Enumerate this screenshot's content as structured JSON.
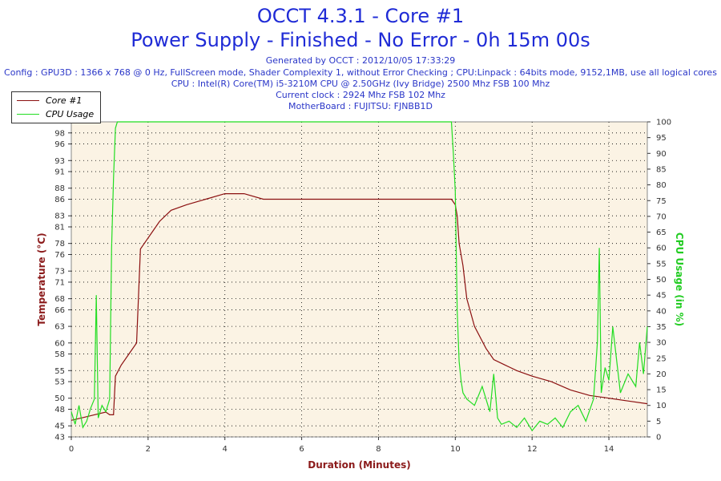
{
  "header": {
    "title": "OCCT 4.3.1 - Core #1",
    "subtitle": "Power Supply - Finished - No Error - 0h 15m 00s",
    "generated": "Generated by OCCT : 2012/10/05 17:33:29",
    "config": "Config : GPU3D : 1366 x 768 @ 0 Hz, FullScreen mode, Shader Complexity 1, without Error Checking ; CPU:Linpack : 64bits mode, 9152,1MB, use all logical cores",
    "cpu": "CPU : Intel(R) Core(TM) i5-3210M CPU @ 2.50GHz (Ivy Bridge) 2500 Mhz FSB 100 Mhz",
    "clock": "Current clock : 2924 Mhz FSB 102 Mhz",
    "motherboard": "MotherBoard : FUJITSU: FJNBB1D"
  },
  "colors": {
    "temperature": "#8b1010",
    "cpu_usage": "#22dd22",
    "plot_bg": "#fbf3e4",
    "axis_label": "#8b1a1a",
    "right_axis_label": "#22cc22"
  },
  "chart_data": {
    "type": "line",
    "xlabel": "Duration (Minutes)",
    "ylabel": "Temperature (°C)",
    "ylabel_right": "CPU Usage (in %)",
    "xlim": [
      0,
      15
    ],
    "ylim": [
      43,
      100
    ],
    "ylim_right": [
      0,
      100
    ],
    "x_ticks": [
      0,
      2,
      4,
      6,
      8,
      10,
      12,
      14
    ],
    "y_ticks": [
      43,
      45,
      48,
      50,
      53,
      55,
      58,
      60,
      63,
      66,
      68,
      71,
      73,
      76,
      78,
      81,
      83,
      86,
      88,
      91,
      93,
      96,
      98
    ],
    "y_ticks_right": [
      0,
      5,
      10,
      15,
      20,
      25,
      30,
      35,
      40,
      45,
      50,
      55,
      60,
      65,
      70,
      75,
      80,
      85,
      90,
      95,
      100
    ],
    "grid": true,
    "legend_position": "top-left",
    "series": [
      {
        "name": "Core #1",
        "axis": "left",
        "x": [
          0,
          0.3,
          0.6,
          0.9,
          1.0,
          1.1,
          1.15,
          1.3,
          1.5,
          1.7,
          1.8,
          1.9,
          2.1,
          2.3,
          2.6,
          3.0,
          3.5,
          4.0,
          4.5,
          5.0,
          5.5,
          6.0,
          7.0,
          8.0,
          9.0,
          9.9,
          10.0,
          10.05,
          10.1,
          10.2,
          10.3,
          10.5,
          10.8,
          11.0,
          11.3,
          11.6,
          12.0,
          12.5,
          13.0,
          13.5,
          14.0,
          14.5,
          15.0
        ],
        "values": [
          46,
          46.5,
          47,
          47.5,
          47,
          47,
          54,
          56,
          58,
          60,
          77,
          78,
          80,
          82,
          84,
          85,
          86,
          87,
          87,
          86,
          86,
          86,
          86,
          86,
          86,
          86,
          85,
          83,
          78,
          74,
          68,
          63,
          59,
          57,
          56,
          55,
          54,
          53,
          51.5,
          50.5,
          50,
          49.5,
          49
        ]
      },
      {
        "name": "CPU Usage",
        "axis": "right",
        "x": [
          0,
          0.1,
          0.2,
          0.3,
          0.4,
          0.5,
          0.6,
          0.65,
          0.7,
          0.8,
          0.9,
          1.0,
          1.05,
          1.1,
          1.15,
          1.2,
          5.0,
          9.9,
          9.95,
          10.0,
          10.05,
          10.1,
          10.15,
          10.2,
          10.3,
          10.5,
          10.7,
          10.9,
          11.0,
          11.1,
          11.2,
          11.4,
          11.6,
          11.8,
          12.0,
          12.2,
          12.4,
          12.6,
          12.8,
          13.0,
          13.2,
          13.4,
          13.6,
          13.7,
          13.75,
          13.8,
          13.9,
          14.0,
          14.1,
          14.3,
          14.5,
          14.7,
          14.8,
          14.9,
          15.0
        ],
        "values": [
          8,
          4,
          10,
          3,
          5,
          9,
          12,
          45,
          6,
          10,
          8,
          12,
          60,
          82,
          98,
          100,
          100,
          100,
          90,
          78,
          40,
          24,
          18,
          14,
          12,
          10,
          16,
          8,
          20,
          6,
          4,
          5,
          3,
          6,
          2,
          5,
          4,
          6,
          3,
          8,
          10,
          5,
          12,
          30,
          60,
          14,
          22,
          18,
          35,
          14,
          20,
          16,
          30,
          20,
          35
        ]
      }
    ]
  }
}
